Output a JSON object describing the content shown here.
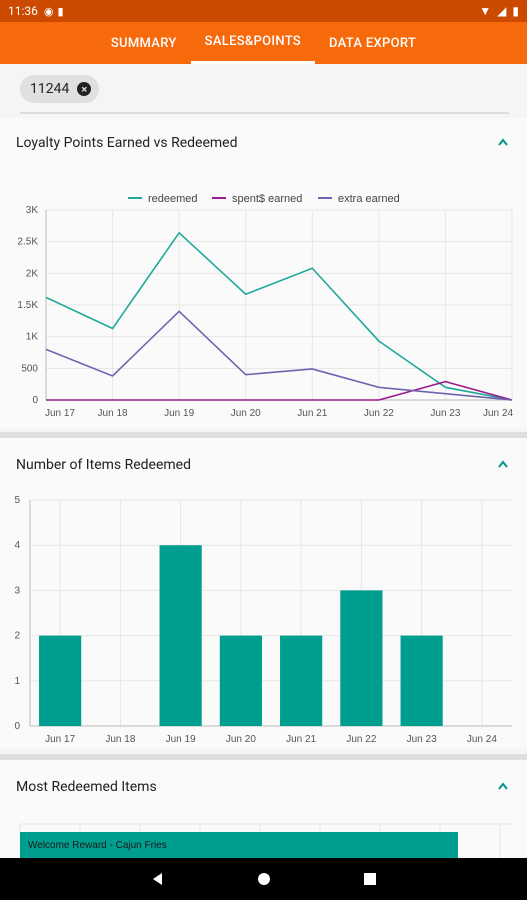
{
  "status": {
    "time": "11:36"
  },
  "tabs": [
    {
      "label": "SUMMARY"
    },
    {
      "label": "SALES&POINTS"
    },
    {
      "label": "DATA EXPORT"
    }
  ],
  "filter_chip": {
    "label": "11244"
  },
  "sections": {
    "points": {
      "title": "Loyalty Points Earned vs Redeemed"
    },
    "items": {
      "title": "Number of Items Redeemed"
    },
    "most": {
      "title": "Most Redeemed Items"
    }
  },
  "chart_data": [
    {
      "type": "line",
      "categories": [
        "Jun 17",
        "Jun 18",
        "Jun 19",
        "Jun 20",
        "Jun 21",
        "Jun 22",
        "Jun 23",
        "Jun 24"
      ],
      "y_ticks": [
        "0",
        "500",
        "1K",
        "1.5K",
        "2K",
        "2.5K",
        "3K"
      ],
      "ylim": [
        0,
        3000
      ],
      "legend_position": "top",
      "series": [
        {
          "name": "redeemed",
          "color": "#20a99a",
          "values": [
            1620,
            1130,
            2640,
            1670,
            2080,
            930,
            200,
            0
          ]
        },
        {
          "name": "spent$ earned",
          "color": "#9c1a8a",
          "values": [
            0,
            0,
            0,
            0,
            0,
            0,
            290,
            0
          ]
        },
        {
          "name": "extra earned",
          "color": "#6f63b0",
          "values": [
            800,
            380,
            1400,
            400,
            490,
            200,
            100,
            0
          ]
        }
      ]
    },
    {
      "type": "bar",
      "categories": [
        "Jun 17",
        "Jun 18",
        "Jun 19",
        "Jun 20",
        "Jun 21",
        "Jun 22",
        "Jun 23",
        "Jun 24"
      ],
      "y_ticks": [
        "0",
        "1",
        "2",
        "3",
        "4",
        "5"
      ],
      "ylim": [
        0,
        5
      ],
      "color": "#009e8e",
      "values": [
        2,
        0,
        4,
        2,
        2,
        3,
        2,
        0
      ]
    },
    {
      "type": "bar",
      "orientation": "horizontal",
      "categories": [
        "Welcome Reward - Cajun Fries"
      ],
      "color": "#009e8e"
    }
  ]
}
